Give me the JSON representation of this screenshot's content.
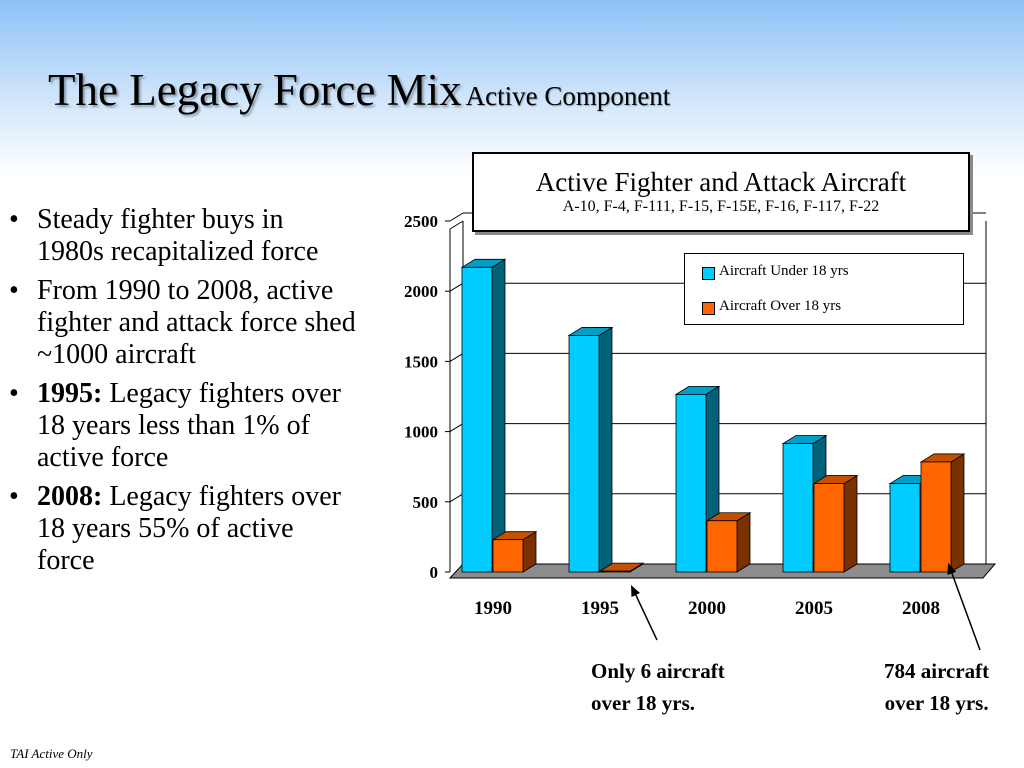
{
  "slide": {
    "title": "The Legacy Force Mix",
    "subtitle": "Active Component",
    "footnote": "TAI Active Only"
  },
  "bullets": [
    {
      "bold": "",
      "text": "Steady fighter buys in 1980s recapitalized force"
    },
    {
      "bold": "",
      "text": "From 1990 to 2008, active fighter and attack force shed ~1000 aircraft"
    },
    {
      "bold": "1995:",
      "text": " Legacy fighters over 18 years less than 1% of active force"
    },
    {
      "bold": "2008:",
      "text": " Legacy fighters over 18 years 55% of active force"
    }
  ],
  "annotations": [
    {
      "line1": "Only 6 aircraft",
      "line2": "over 18 yrs."
    },
    {
      "line1": "784 aircraft",
      "line2": "over 18 yrs."
    }
  ],
  "chart_data": {
    "type": "bar",
    "title": "Active Fighter and Attack Aircraft",
    "subtitle": "A-10, F-4, F-111, F-15, F-15E, F-16, F-117, F-22",
    "categories": [
      "1990",
      "1995",
      "2000",
      "2005",
      "2008"
    ],
    "series": [
      {
        "name": "Aircraft Under 18 yrs",
        "color": "#00ccff",
        "values": [
          2170,
          1685,
          1265,
          915,
          630
        ]
      },
      {
        "name": "Aircraft Over 18 yrs",
        "color": "#ff6600",
        "values": [
          230,
          6,
          365,
          630,
          784
        ]
      }
    ],
    "ylim": [
      0,
      2500
    ],
    "yticks": [
      0,
      500,
      1000,
      1500,
      2000,
      2500
    ],
    "grid": true,
    "style": "3d",
    "legend_position": "top-right"
  }
}
